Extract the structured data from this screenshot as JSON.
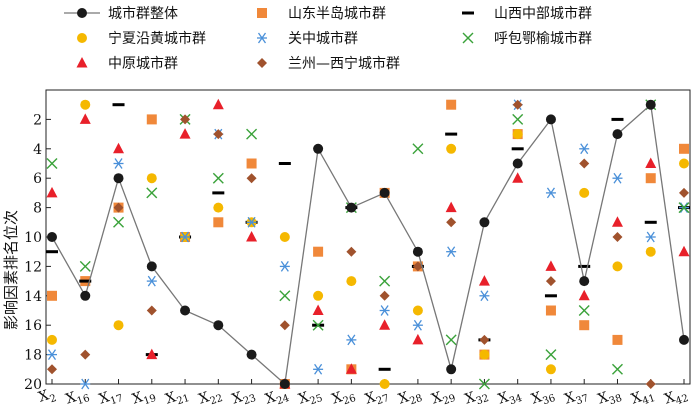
{
  "chart_data": {
    "type": "scatter",
    "title": "",
    "xlabel": "",
    "ylabel": "影响因素排名位次",
    "ylim": [
      20,
      0
    ],
    "y_reversed": true,
    "y_ticks": [
      2,
      4,
      6,
      8,
      10,
      12,
      14,
      16,
      18,
      20
    ],
    "grid": false,
    "legend_position": "top",
    "categories": [
      {
        "base": "X",
        "sub": "2"
      },
      {
        "base": "X",
        "sub": "16"
      },
      {
        "base": "X",
        "sub": "17"
      },
      {
        "base": "X",
        "sub": "19"
      },
      {
        "base": "X",
        "sub": "21"
      },
      {
        "base": "X",
        "sub": "22"
      },
      {
        "base": "X",
        "sub": "23"
      },
      {
        "base": "X",
        "sub": "24"
      },
      {
        "base": "X",
        "sub": "25"
      },
      {
        "base": "X",
        "sub": "26"
      },
      {
        "base": "X",
        "sub": "27"
      },
      {
        "base": "X",
        "sub": "28"
      },
      {
        "base": "X",
        "sub": "29"
      },
      {
        "base": "X",
        "sub": "32"
      },
      {
        "base": "X",
        "sub": "34"
      },
      {
        "base": "X",
        "sub": "36"
      },
      {
        "base": "X",
        "sub": "37"
      },
      {
        "base": "X",
        "sub": "38"
      },
      {
        "base": "X",
        "sub": "41"
      },
      {
        "base": "X",
        "sub": "42"
      }
    ],
    "series": [
      {
        "name": "城市群整体",
        "marker": "circle-line",
        "color": "#1a1a1a",
        "values": [
          10,
          14,
          6,
          12,
          15,
          16,
          18,
          20,
          4,
          8,
          7,
          11,
          19,
          9,
          5,
          2,
          13,
          3,
          1,
          17
        ]
      },
      {
        "name": "山东半岛城市群",
        "marker": "square",
        "color": "#f0883a",
        "values": [
          14,
          13,
          8,
          2,
          10,
          9,
          5,
          20,
          11,
          19,
          7,
          12,
          1,
          18,
          3,
          15,
          16,
          17,
          6,
          4
        ]
      },
      {
        "name": "山西中部城市群",
        "marker": "dash",
        "color": "#000000",
        "values": [
          11,
          13,
          1,
          18,
          10,
          7,
          9,
          5,
          16,
          8,
          19,
          12,
          3,
          17,
          4,
          14,
          12,
          2,
          9,
          8
        ]
      },
      {
        "name": "宁夏沿黄城市群",
        "marker": "dot",
        "color": "#f5b800",
        "values": [
          17,
          1,
          16,
          6,
          10,
          8,
          9,
          10,
          14,
          13,
          20,
          15,
          4,
          18,
          3,
          19,
          7,
          12,
          11,
          5
        ]
      },
      {
        "name": "关中城市群",
        "marker": "asterisk",
        "color": "#4a90d9",
        "values": [
          18,
          20,
          5,
          13,
          10,
          3,
          9,
          12,
          19,
          17,
          15,
          16,
          11,
          14,
          1,
          7,
          4,
          6,
          10,
          8
        ]
      },
      {
        "name": "呼包鄂榆城市群",
        "marker": "x",
        "color": "#3aa23a",
        "values": [
          5,
          12,
          9,
          7,
          2,
          6,
          3,
          14,
          16,
          8,
          13,
          4,
          17,
          20,
          2,
          18,
          15,
          19,
          1,
          8
        ]
      },
      {
        "name": "中原城市群",
        "marker": "triangle",
        "color": "#e8202a",
        "values": [
          7,
          2,
          4,
          18,
          3,
          1,
          10,
          20,
          15,
          19,
          16,
          17,
          8,
          13,
          6,
          12,
          14,
          9,
          5,
          11
        ]
      },
      {
        "name": "兰州—西宁城市群",
        "marker": "diamond",
        "color": "#a0522d",
        "values": [
          19,
          18,
          8,
          15,
          2,
          3,
          6,
          16,
          4,
          11,
          14,
          12,
          9,
          17,
          1,
          13,
          5,
          10,
          20,
          7
        ]
      }
    ]
  }
}
